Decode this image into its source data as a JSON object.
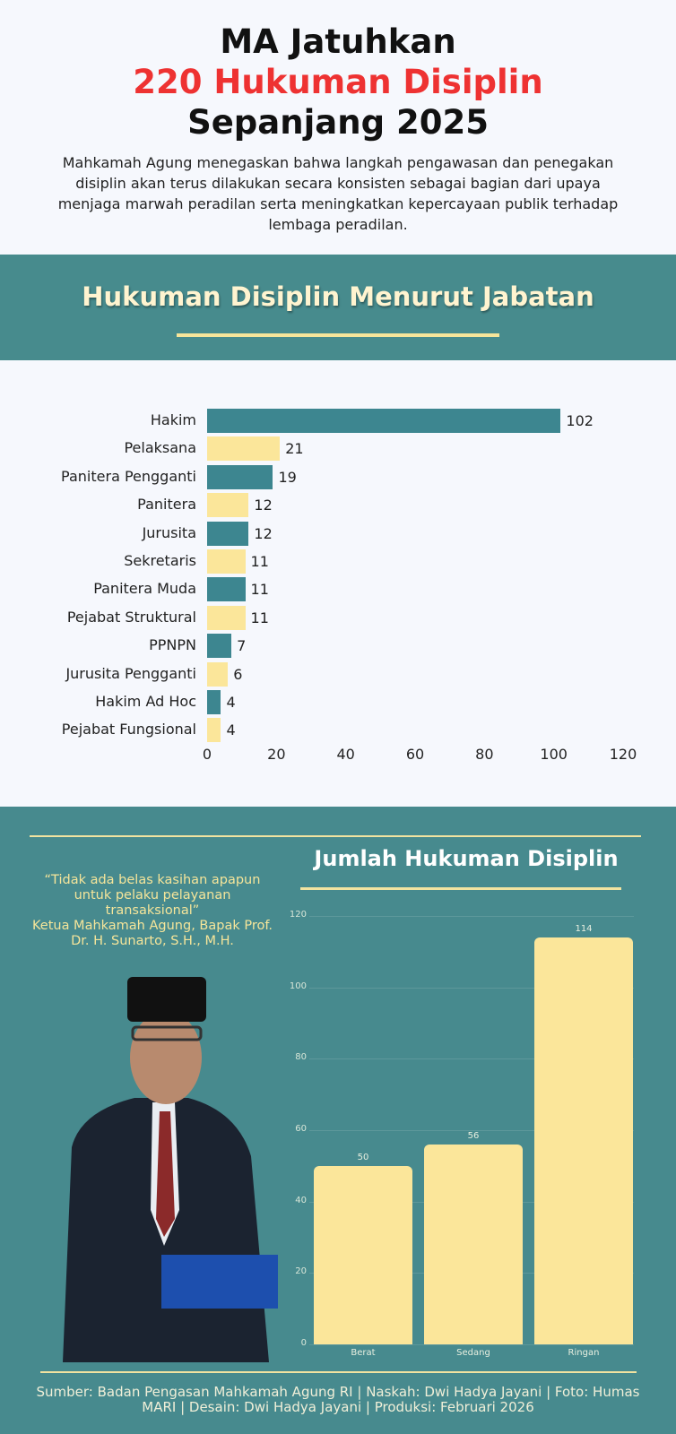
{
  "header": {
    "title_line1": "MA Jatuhkan",
    "title_line2": "220 Hukuman Disiplin",
    "title_line3": "Sepanjang 2025",
    "intro": "Mahkamah Agung menegaskan bahwa langkah pengawasan dan penegakan disiplin akan terus dilakukan secara konsisten sebagai bagian dari upaya menjaga marwah peradilan serta meningkatkan kepercayaan publik terhadap lembaga peradilan."
  },
  "colors": {
    "teal": "#478a8e",
    "bar_teal": "#3d8690",
    "yellow": "#fbe69a",
    "red": "#ee3232"
  },
  "quote": {
    "text": "“Tidak ada belas kasihan apapun untuk pelaku pelayanan transaksional”",
    "attribution": "Ketua Mahkamah Agung, Bapak Prof. Dr. H. Sunarto, S.H., M.H."
  },
  "footer": "Sumber: Badan Pengasan Mahkamah Agung RI | Naskah: Dwi Hadya Jayani | Foto: Humas MARI | Desain: Dwi Hadya Jayani | Produksi: Februari 2026",
  "chart_data": [
    {
      "type": "bar",
      "orientation": "horizontal",
      "title": "Hukuman Disiplin Menurut Jabatan",
      "categories": [
        "Hakim",
        "Pelaksana",
        "Panitera Pengganti",
        "Panitera",
        "Jurusita",
        "Sekretaris",
        "Panitera Muda",
        "Pejabat Struktural",
        "PPNPN",
        "Jurusita Pengganti",
        "Hakim Ad Hoc",
        "Pejabat Fungsional"
      ],
      "values": [
        102,
        21,
        19,
        12,
        12,
        11,
        11,
        11,
        7,
        6,
        4,
        4
      ],
      "xlim": [
        0,
        120
      ],
      "xticks": [
        0,
        20,
        40,
        60,
        80,
        100,
        120
      ]
    },
    {
      "type": "bar",
      "title": "Jumlah Hukuman Disiplin",
      "categories": [
        "Berat",
        "Sedang",
        "Ringan"
      ],
      "values": [
        50,
        56,
        114
      ],
      "ylim": [
        0,
        120
      ],
      "yticks": [
        0,
        20,
        40,
        60,
        80,
        100,
        120
      ]
    }
  ]
}
